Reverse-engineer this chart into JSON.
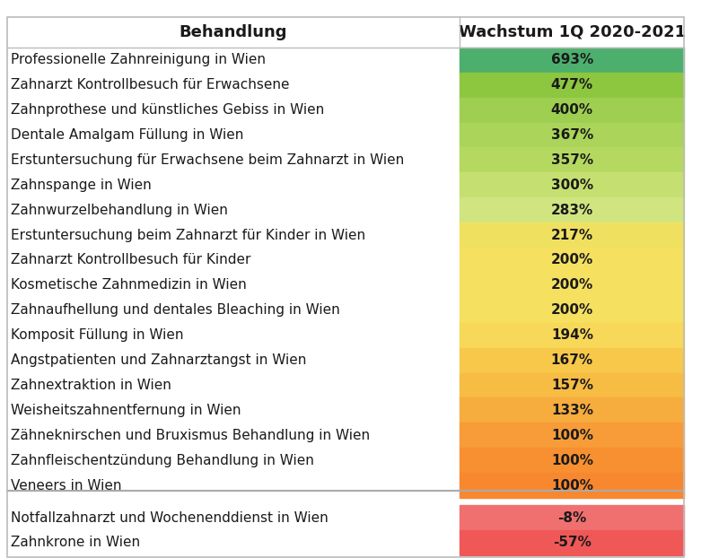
{
  "col1_header": "Behandlung",
  "col2_header": "Wachstum 1Q 2020-2021",
  "rows": [
    {
      "label": "Professionelle Zahnreinigung in Wien",
      "value": "693%",
      "color": "#4caf6e"
    },
    {
      "label": "Zahnarzt Kontrollbesuch für Erwachsene",
      "value": "477%",
      "color": "#8dc63f"
    },
    {
      "label": "Zahnprothese und künstliches Gebiss in Wien",
      "value": "400%",
      "color": "#9ecf50"
    },
    {
      "label": "Dentale Amalgam Füllung in Wien",
      "value": "367%",
      "color": "#aad45a"
    },
    {
      "label": "Erstuntersuchung für Erwachsene beim Zahnarzt in Wien",
      "value": "357%",
      "color": "#b5d960"
    },
    {
      "label": "Zahnspange in Wien",
      "value": "300%",
      "color": "#c5e070"
    },
    {
      "label": "Zahnwurzelbehandlung in Wien",
      "value": "283%",
      "color": "#d0e580"
    },
    {
      "label": "Erstuntersuchung beim Zahnarzt für Kinder in Wien",
      "value": "217%",
      "color": "#f0e060"
    },
    {
      "label": "Zahnarzt Kontrollbesuch für Kinder",
      "value": "200%",
      "color": "#f5e060"
    },
    {
      "label": "Kosmetische Zahnmedizin in Wien",
      "value": "200%",
      "color": "#f5e060"
    },
    {
      "label": "Zahnaufhellung und dentales Bleaching in Wien",
      "value": "200%",
      "color": "#f5e060"
    },
    {
      "label": "Komposit Füllung in Wien",
      "value": "194%",
      "color": "#f7d858"
    },
    {
      "label": "Angstpatienten und Zahnarztangst in Wien",
      "value": "167%",
      "color": "#f7c84a"
    },
    {
      "label": "Zahnextraktion in Wien",
      "value": "157%",
      "color": "#f7bc44"
    },
    {
      "label": "Weisheitszahnentfernung in Wien",
      "value": "133%",
      "color": "#f7ac3e"
    },
    {
      "label": "Zähneknirschen und Bruxismus Behandlung in Wien",
      "value": "100%",
      "color": "#f79c38"
    },
    {
      "label": "Zahnfleischentzündung Behandlung in Wien",
      "value": "100%",
      "color": "#f79030"
    },
    {
      "label": "Veneers in Wien",
      "value": "100%",
      "color": "#f78830"
    },
    {
      "label": "Notfallzahnarzt und Wochenenddienst in Wien",
      "value": "-8%",
      "color": "#f07070"
    },
    {
      "label": "Zahnkrone in Wien",
      "value": "-57%",
      "color": "#f05858"
    }
  ],
  "separator_after_row": 18,
  "background_color": "#ffffff",
  "text_color": "#1a1a1a",
  "value_text_color": "#1a1a1a",
  "header_fontsize": 13,
  "row_fontsize": 11,
  "value_fontsize": 11,
  "fig_width": 7.91,
  "fig_height": 6.22
}
